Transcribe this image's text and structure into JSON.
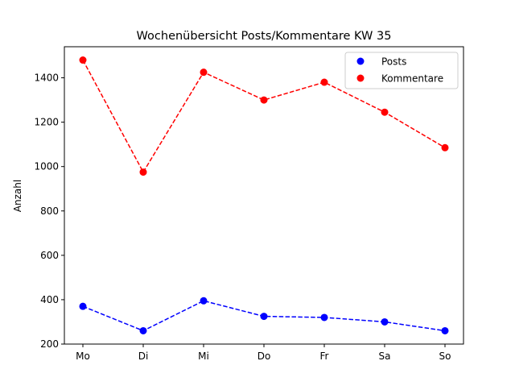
{
  "chart_data": {
    "type": "line",
    "title": "Wochenübersicht Posts/Kommentare KW 35",
    "xlabel": "",
    "ylabel": "Anzahl",
    "categories": [
      "Mo",
      "Di",
      "Mi",
      "Do",
      "Fr",
      "Sa",
      "So"
    ],
    "ylim": [
      200,
      1540
    ],
    "yticks": [
      200,
      400,
      600,
      800,
      1000,
      1200,
      1400
    ],
    "grid": false,
    "legend_position": "top-right",
    "series": [
      {
        "name": "Posts",
        "color": "#0000ff",
        "linestyle": "dashed",
        "marker": "circle",
        "values": [
          370,
          260,
          395,
          325,
          320,
          300,
          260
        ]
      },
      {
        "name": "Kommentare",
        "color": "#ff0000",
        "linestyle": "dashed",
        "marker": "circle",
        "values": [
          1480,
          975,
          1425,
          1300,
          1380,
          1245,
          1085
        ]
      }
    ]
  }
}
